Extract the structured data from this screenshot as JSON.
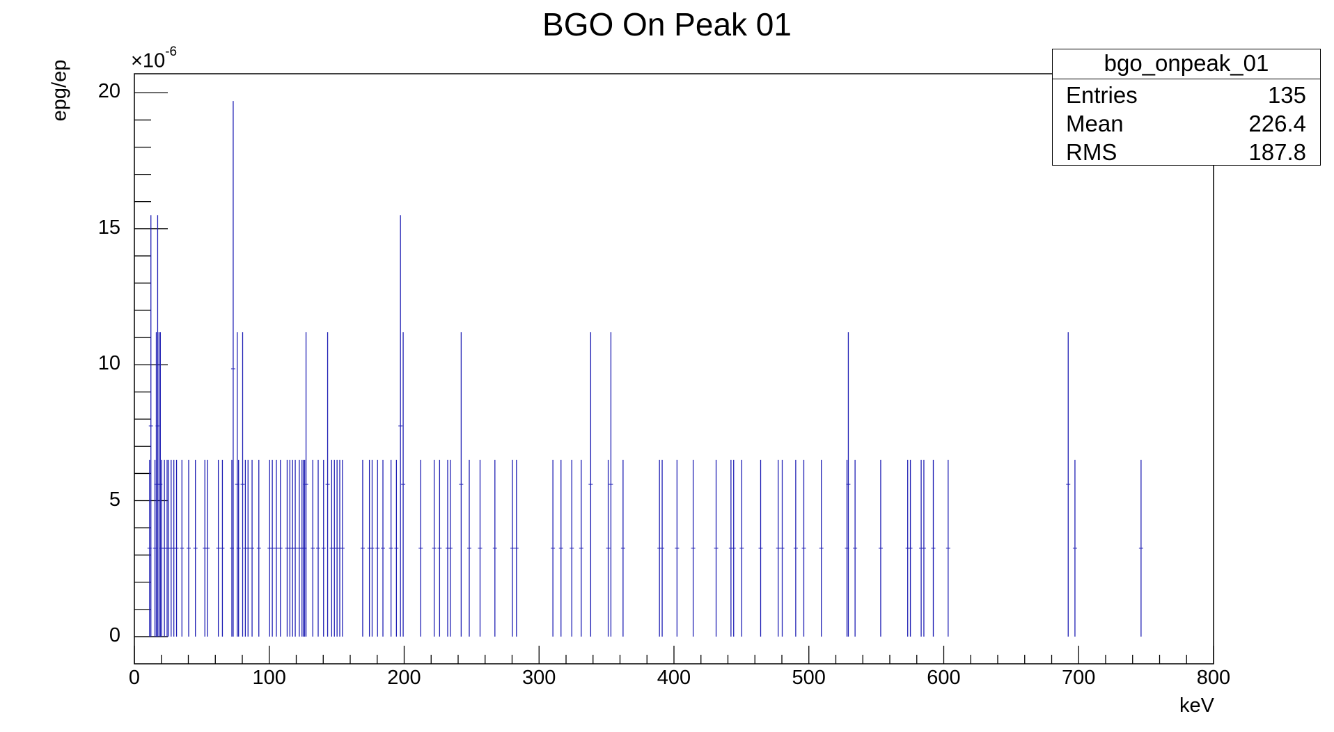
{
  "chart_data": {
    "type": "bar",
    "title": "BGO On Peak 01",
    "xlabel": "keV",
    "ylabel": "epg/ep",
    "y_exponent_label": "×10",
    "y_exponent_power": "-6",
    "xlim": [
      0,
      800
    ],
    "ylim": [
      -1,
      20.7
    ],
    "x_ticks": [
      "0",
      "100",
      "200",
      "300",
      "400",
      "500",
      "600",
      "700",
      "800"
    ],
    "y_ticks": [
      "0",
      "5",
      "10",
      "15",
      "20"
    ],
    "bar_color": "#1f1fb4",
    "series": [
      {
        "x": [
          11,
          12,
          15,
          16,
          17,
          18,
          19,
          20,
          22,
          24,
          25,
          27,
          29,
          31,
          35,
          40,
          45,
          52,
          54,
          62,
          65,
          72,
          73,
          76,
          77,
          80,
          82,
          84,
          87,
          92,
          100,
          102,
          105,
          108,
          113,
          115,
          117,
          119,
          122,
          124,
          125,
          126,
          127,
          132,
          136,
          140,
          143,
          146,
          148,
          150,
          152,
          154,
          169,
          174,
          176,
          180,
          184,
          190,
          194,
          197,
          199,
          212,
          222,
          226,
          232,
          234,
          242,
          248,
          256,
          267,
          280,
          283,
          310,
          316,
          324,
          331,
          338,
          351,
          353,
          362,
          389,
          391,
          402,
          414,
          431,
          442,
          444,
          450,
          464,
          477,
          480,
          490,
          496,
          509,
          528,
          529,
          534,
          553,
          573,
          575,
          583,
          585,
          592,
          603,
          692,
          697,
          746
        ],
        "values": [
          6.5,
          15.5,
          6.5,
          11.2,
          15.5,
          11.2,
          11.2,
          6.5,
          6.5,
          6.5,
          6.5,
          6.5,
          6.5,
          6.5,
          6.5,
          6.5,
          6.5,
          6.5,
          6.5,
          6.5,
          6.5,
          6.5,
          19.7,
          11.2,
          6.5,
          11.2,
          6.5,
          6.5,
          6.5,
          6.5,
          6.5,
          6.5,
          6.5,
          6.5,
          6.5,
          6.5,
          6.5,
          6.5,
          6.5,
          6.5,
          6.5,
          6.5,
          11.2,
          6.5,
          6.5,
          6.5,
          11.2,
          6.5,
          6.5,
          6.5,
          6.5,
          6.5,
          6.5,
          6.5,
          6.5,
          6.5,
          6.5,
          6.5,
          6.5,
          15.5,
          11.2,
          6.5,
          6.5,
          6.5,
          6.5,
          6.5,
          11.2,
          6.5,
          6.5,
          6.5,
          6.5,
          6.5,
          6.5,
          6.5,
          6.5,
          6.5,
          11.2,
          6.5,
          11.2,
          6.5,
          6.5,
          6.5,
          6.5,
          6.5,
          6.5,
          6.5,
          6.5,
          6.5,
          6.5,
          6.5,
          6.5,
          6.5,
          6.5,
          6.5,
          6.5,
          11.2,
          6.5,
          6.5,
          6.5,
          6.5,
          6.5,
          6.5,
          6.5,
          6.5,
          11.2,
          6.5,
          6.5
        ]
      }
    ]
  },
  "stats_box": {
    "title": "bgo_onpeak_01",
    "rows": [
      {
        "label": "Entries",
        "value": "135"
      },
      {
        "label": "Mean",
        "value": "226.4"
      },
      {
        "label": "RMS",
        "value": "187.8"
      }
    ]
  }
}
